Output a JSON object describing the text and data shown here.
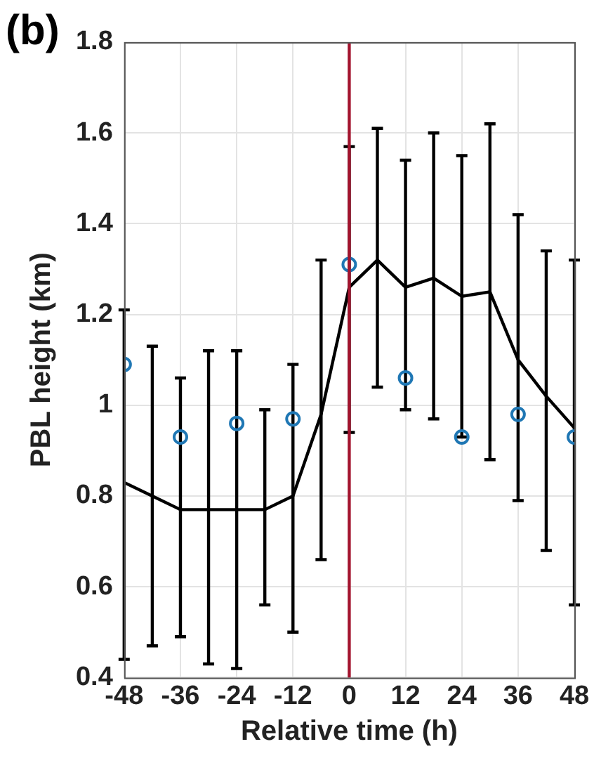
{
  "chart_data": {
    "type": "line",
    "title": "(b)",
    "xlabel": "Relative time (h)",
    "ylabel": "PBL height (km)",
    "xlim": [
      -48,
      48
    ],
    "xticks": [
      -48,
      -36,
      -24,
      -12,
      0,
      12,
      24,
      36,
      48
    ],
    "ylim": [
      0.4,
      1.8
    ],
    "yticks": [
      0.4,
      0.6,
      0.8,
      1,
      1.2,
      1.4,
      1.6,
      1.8
    ],
    "grid": true,
    "legend": false,
    "series": [
      {
        "color": "#000000",
        "marker": "none",
        "x": [
          -48,
          -42,
          -36,
          -30,
          -24,
          -18,
          -12,
          -6,
          0,
          6,
          12,
          18,
          24,
          30,
          36,
          42,
          48
        ],
        "values": [
          0.83,
          0.8,
          0.77,
          0.77,
          0.77,
          0.77,
          0.8,
          0.98,
          1.26,
          1.32,
          1.26,
          1.28,
          1.24,
          1.25,
          1.1,
          1.02,
          0.95
        ],
        "errors": [
          [
            0.44,
            1.21
          ],
          [
            0.47,
            1.13
          ],
          [
            0.49,
            1.06
          ],
          [
            0.43,
            1.12
          ],
          [
            0.42,
            1.12
          ],
          [
            0.56,
            0.99
          ],
          [
            0.5,
            1.09
          ],
          [
            0.66,
            1.32
          ],
          [
            0.94,
            1.57
          ],
          [
            1.04,
            1.61
          ],
          [
            0.99,
            1.54
          ],
          [
            0.97,
            1.6
          ],
          [
            0.93,
            1.55
          ],
          [
            0.88,
            1.62
          ],
          [
            0.79,
            1.42
          ],
          [
            0.68,
            1.34
          ],
          [
            0.56,
            1.32
          ]
        ]
      },
      {
        "type": "scatter",
        "color": "#1f77b4",
        "marker": "circle",
        "x": [
          -48,
          -36,
          -24,
          -12,
          0,
          12,
          24,
          36,
          48
        ],
        "values": [
          1.09,
          0.93,
          0.96,
          0.97,
          1.31,
          1.06,
          0.93,
          0.98,
          0.93
        ]
      }
    ],
    "ref_lines": [
      {
        "axis": "x",
        "value": 0,
        "color": "#a3142e"
      }
    ]
  }
}
